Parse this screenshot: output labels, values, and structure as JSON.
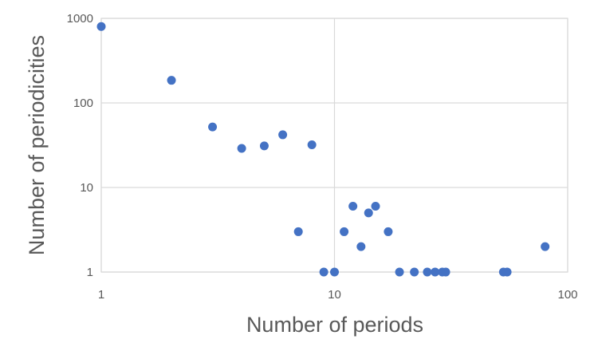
{
  "chart_data": {
    "type": "scatter",
    "title": "",
    "xlabel": "Number of periods",
    "ylabel": "Number of periodicities",
    "x_scale": "log",
    "y_scale": "log",
    "xlim": [
      1,
      100
    ],
    "ylim": [
      1,
      1000
    ],
    "x_ticks": [
      1,
      10,
      100
    ],
    "y_ticks": [
      1,
      10,
      100,
      1000
    ],
    "x_tick_labels": [
      "1",
      "10",
      "100"
    ],
    "y_tick_labels": [
      "1",
      "10",
      "100",
      "1000"
    ],
    "grid": true,
    "legend": "none",
    "marker_color": "#4472c4",
    "points": [
      {
        "x": 1,
        "y": 800
      },
      {
        "x": 2,
        "y": 185
      },
      {
        "x": 3,
        "y": 52
      },
      {
        "x": 4,
        "y": 29
      },
      {
        "x": 5,
        "y": 31
      },
      {
        "x": 6,
        "y": 42
      },
      {
        "x": 7,
        "y": 3
      },
      {
        "x": 8,
        "y": 32
      },
      {
        "x": 9,
        "y": 1
      },
      {
        "x": 10,
        "y": 1
      },
      {
        "x": 11,
        "y": 3
      },
      {
        "x": 12,
        "y": 6
      },
      {
        "x": 13,
        "y": 2
      },
      {
        "x": 14,
        "y": 5
      },
      {
        "x": 15,
        "y": 6
      },
      {
        "x": 17,
        "y": 3
      },
      {
        "x": 19,
        "y": 1
      },
      {
        "x": 22,
        "y": 1
      },
      {
        "x": 25,
        "y": 1
      },
      {
        "x": 27,
        "y": 1
      },
      {
        "x": 29,
        "y": 1
      },
      {
        "x": 30,
        "y": 1
      },
      {
        "x": 53,
        "y": 1
      },
      {
        "x": 55,
        "y": 1
      },
      {
        "x": 80,
        "y": 2
      }
    ]
  }
}
